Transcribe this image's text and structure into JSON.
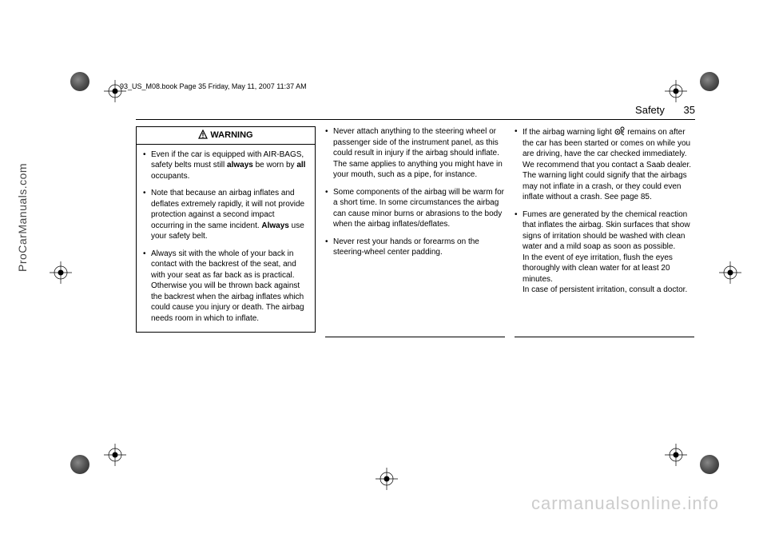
{
  "meta": {
    "book_line": "93_US_M08.book  Page 35  Friday, May 11, 2007  11:37 AM"
  },
  "header": {
    "section": "Safety",
    "page": "35"
  },
  "warning": {
    "label": "WARNING",
    "items": [
      "Even if the car is equipped with AIR-BAGS, safety belts must still <b>always</b> be worn by <b>all</b> occupants.",
      "Note that because an airbag inflates and deflates extremely rapidly, it will not provide protection against a second impact occurring in the same incident. <b>Always</b> use your safety belt.",
      "Always sit with the whole of your back in contact with the backrest of the seat, and with your seat as far back as is practical. Otherwise you will be thrown back against the backrest when the airbag inflates which could cause you injury or death. The airbag needs room in which to inflate."
    ]
  },
  "col2": {
    "items": [
      "Never attach anything to the steering wheel or passenger side of the instrument panel, as this could result in injury if the airbag should inflate. The same applies to anything you might have in your mouth, such as a pipe, for instance.",
      "Some components of the airbag will be warm for a short time. In some circumstances the airbag can cause minor burns or abrasions to the body when the airbag inflates/deflates.",
      "Never rest your hands or forearms on the steering-wheel center padding."
    ]
  },
  "col3": {
    "items": [
      "If the airbag warning light {ICON} remains on after the car has been started or comes on while you are driving, have the car checked immediately. We recommend that you contact a Saab dealer. The warning light could signify that the airbags may not inflate in a crash, or they could even inflate without a crash. See page 85.",
      "Fumes are generated by the chemical reaction that inflates the airbag. Skin surfaces that show signs of irritation should be washed with clean water and a mild soap as soon as possible.<br>In the event of eye irritation, flush the eyes thoroughly with clean water for at least 20 minutes.<br>In case of persistent irritation, consult a doctor."
    ]
  },
  "sidebar": {
    "site": "ProCarManuals.com"
  },
  "watermark": {
    "text": "carmanualsonline.info"
  },
  "colors": {
    "text": "#000000",
    "background": "#ffffff",
    "watermark": "#cccccc",
    "sidebar": "#444444"
  }
}
